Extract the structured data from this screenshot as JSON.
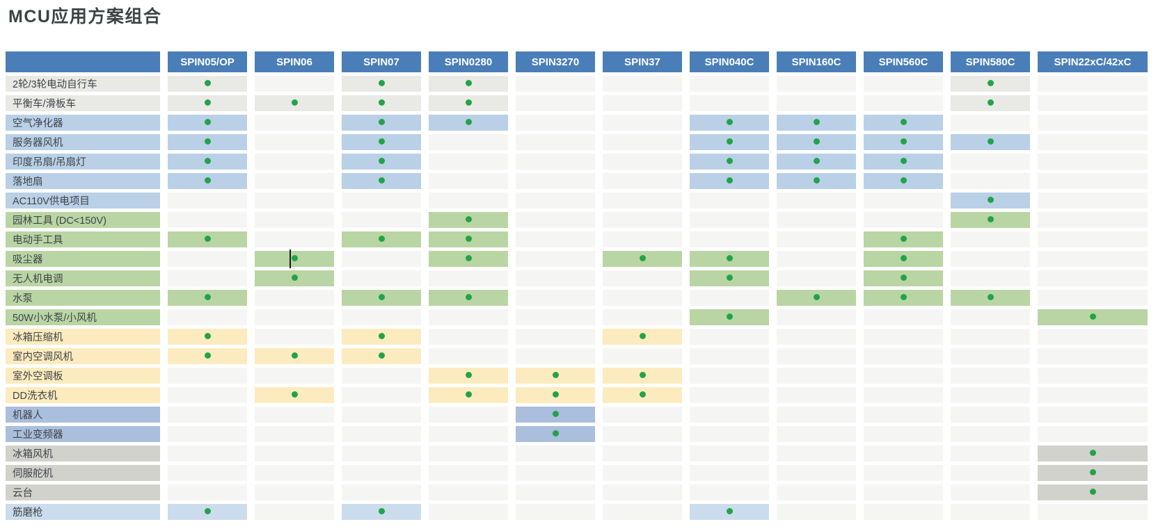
{
  "title": "MCU应用方案组合",
  "table": {
    "corner_label": "",
    "columns": [
      "SPIN05/OP",
      "SPIN06",
      "SPIN07",
      "SPIN0280",
      "SPIN3270",
      "SPIN37",
      "SPIN040C",
      "SPIN160C",
      "SPIN560C",
      "SPIN580C",
      "SPIN22xC/42xC"
    ],
    "rows": [
      {
        "label": "2轮/3轮电动自行车",
        "group": "gray_light",
        "dots": [
          0,
          2,
          3,
          9
        ]
      },
      {
        "label": "平衡车/滑板车",
        "group": "gray_light",
        "dots": [
          0,
          1,
          2,
          3,
          9
        ]
      },
      {
        "label": "空气净化器",
        "group": "blue",
        "dots": [
          0,
          2,
          3,
          6,
          7,
          8
        ]
      },
      {
        "label": "服务器风机",
        "group": "blue",
        "dots": [
          0,
          2,
          6,
          7,
          8,
          9
        ]
      },
      {
        "label": "印度吊扇/吊扇灯",
        "group": "blue",
        "dots": [
          0,
          2,
          6,
          7,
          8
        ]
      },
      {
        "label": "落地扇",
        "group": "blue",
        "dots": [
          0,
          2,
          6,
          7,
          8
        ]
      },
      {
        "label": "AC110V供电项目",
        "group": "blue",
        "dots": [
          9
        ]
      },
      {
        "label": "园林工具 (DC<150V)",
        "group": "green",
        "dots": [
          3,
          9
        ]
      },
      {
        "label": "电动手工具",
        "group": "green",
        "dots": [
          0,
          2,
          3,
          8
        ]
      },
      {
        "label": "吸尘器",
        "group": "green",
        "dots": [
          1,
          3,
          5,
          6,
          8
        ],
        "cursor_col": 1
      },
      {
        "label": "无人机电调",
        "group": "green",
        "dots": [
          1,
          6,
          8
        ]
      },
      {
        "label": "水泵",
        "group": "green",
        "dots": [
          0,
          2,
          3,
          7,
          8,
          9
        ]
      },
      {
        "label": "50W小水泵/小风机",
        "group": "green",
        "dots": [
          6,
          10
        ]
      },
      {
        "label": "冰箱压缩机",
        "group": "yellow",
        "dots": [
          0,
          2,
          5
        ]
      },
      {
        "label": "室内空调风机",
        "group": "yellow",
        "dots": [
          0,
          1,
          2
        ]
      },
      {
        "label": "室外空调板",
        "group": "yellow",
        "dots": [
          3,
          4,
          5
        ]
      },
      {
        "label": "DD洗衣机",
        "group": "yellow",
        "dots": [
          1,
          3,
          4,
          5
        ]
      },
      {
        "label": "机器人",
        "group": "periwinkle",
        "dots": [
          4
        ]
      },
      {
        "label": "工业变频器",
        "group": "periwinkle",
        "dots": [
          4
        ]
      },
      {
        "label": "冰箱风机",
        "group": "gray",
        "dots": [
          10
        ]
      },
      {
        "label": "伺服舵机",
        "group": "gray",
        "dots": [
          10
        ]
      },
      {
        "label": "云台",
        "group": "gray",
        "dots": [
          10
        ]
      },
      {
        "label": "筋磨枪",
        "group": "lightblue",
        "dots": [
          0,
          2,
          6
        ]
      }
    ]
  },
  "colors": {
    "header_bg": "#4a7eb8",
    "header_text": "#ffffff",
    "cell_bg": "#f5f5f4",
    "dot": "#22a349",
    "title_text": "#3d4247",
    "label_text": "#3f4347",
    "groups": {
      "gray_light": "#e9e9e5",
      "blue": "#b9d0e7",
      "green": "#b9d5a3",
      "yellow": "#fcebbe",
      "periwinkle": "#aabedd",
      "gray": "#d2d2cd",
      "lightblue": "#cbdcec"
    }
  }
}
